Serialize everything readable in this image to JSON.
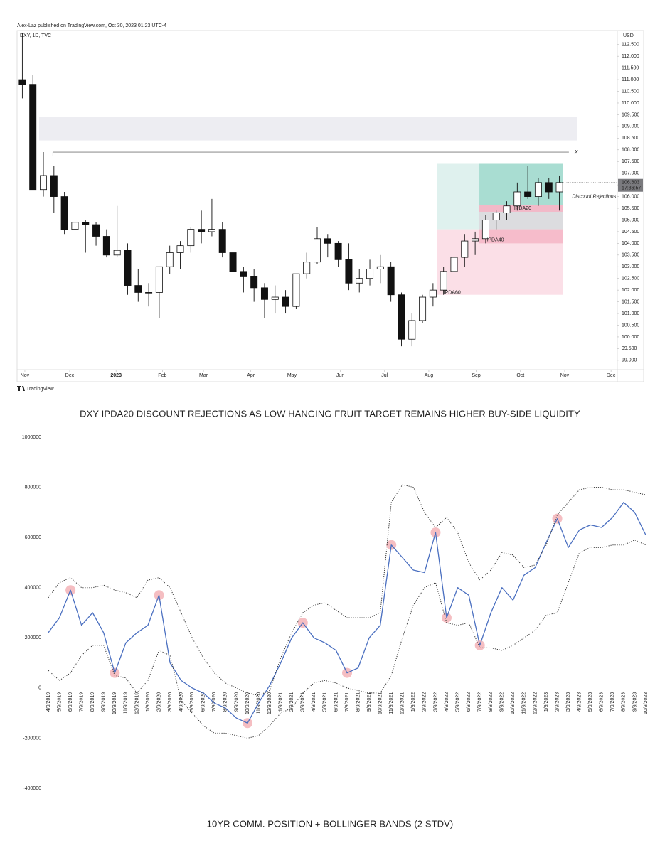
{
  "chart_data": [
    {
      "type": "candlestick",
      "header": "Alex-Laz published on TradingView.com, Oct 30, 2023 01:23 UTC-4",
      "title": "DXY, 1D, TVC",
      "currency": "USD",
      "brand": "TradingView",
      "caption": "DXY IPDA20 DISCOUNT REJECTIONS AS LOW HANGING FRUIT TARGET REMAINS HIGHER BUY-SIDE LIQUIDITY",
      "open": [
        111.0,
        110.8,
        106.3,
        106.9,
        106.0,
        104.6,
        104.9,
        104.8,
        104.3,
        103.5,
        103.7,
        102.2,
        101.9,
        101.9,
        103.0,
        103.6,
        103.9,
        104.6,
        104.5,
        104.6,
        103.6,
        102.8,
        102.6,
        102.1,
        101.6,
        101.7,
        101.3,
        102.7,
        103.2,
        104.2,
        104.0,
        103.3,
        102.3,
        102.5,
        102.9,
        103.0,
        101.8,
        99.9,
        100.7,
        101.7,
        102.0,
        102.8,
        103.4,
        104.1,
        104.2,
        105.0,
        105.3,
        105.6,
        106.2,
        106.0,
        106.6,
        106.2
      ],
      "high": [
        113.0,
        111.2,
        107.9,
        107.3,
        106.2,
        105.6,
        105.0,
        104.9,
        104.6,
        105.6,
        104.0,
        102.9,
        102.3,
        103.0,
        103.9,
        104.1,
        104.7,
        105.4,
        105.9,
        104.9,
        103.9,
        103.0,
        102.9,
        102.3,
        102.2,
        102.0,
        102.7,
        103.6,
        104.7,
        104.4,
        104.1,
        104.0,
        102.9,
        103.3,
        103.5,
        103.2,
        101.9,
        101.0,
        101.8,
        102.3,
        103.0,
        103.6,
        104.4,
        104.5,
        105.2,
        105.4,
        105.8,
        106.6,
        107.3,
        106.8,
        106.8,
        106.9
      ],
      "low": [
        110.2,
        106.3,
        106.0,
        105.3,
        104.4,
        104.1,
        103.6,
        103.9,
        103.4,
        103.4,
        101.8,
        101.5,
        101.3,
        100.8,
        102.7,
        102.9,
        103.6,
        104.0,
        104.3,
        103.4,
        102.6,
        101.9,
        101.5,
        100.8,
        101.0,
        101.0,
        101.2,
        102.5,
        103.1,
        103.4,
        103.0,
        102.0,
        101.9,
        102.2,
        102.3,
        101.5,
        99.6,
        99.6,
        100.6,
        101.3,
        101.8,
        102.6,
        103.0,
        103.5,
        104.0,
        104.6,
        105.0,
        105.4,
        105.9,
        105.6,
        105.9,
        105.4
      ],
      "close": [
        110.8,
        106.3,
        106.9,
        106.0,
        104.6,
        104.9,
        104.8,
        104.3,
        103.5,
        103.7,
        102.2,
        101.9,
        101.9,
        103.0,
        103.6,
        103.9,
        104.6,
        104.5,
        104.6,
        103.6,
        102.8,
        102.6,
        102.1,
        101.6,
        101.7,
        101.3,
        102.7,
        103.2,
        104.2,
        104.0,
        103.3,
        102.3,
        102.5,
        102.9,
        103.0,
        101.8,
        99.9,
        100.7,
        101.7,
        102.0,
        102.8,
        103.4,
        104.1,
        104.2,
        105.0,
        105.3,
        105.6,
        106.2,
        106.0,
        106.6,
        106.2,
        106.6
      ],
      "xlim": [
        -0.5,
        56.5
      ],
      "xticks": [
        {
          "value": 0.24,
          "label": "Nov"
        },
        {
          "value": 4.5,
          "label": "Dec"
        },
        {
          "value": 8.9,
          "label": "2023"
        },
        {
          "value": 13.3,
          "label": "Feb"
        },
        {
          "value": 17.2,
          "label": "Mar"
        },
        {
          "value": 21.7,
          "label": "Apr"
        },
        {
          "value": 25.6,
          "label": "May"
        },
        {
          "value": 30.2,
          "label": "Jun"
        },
        {
          "value": 34.4,
          "label": "Jul"
        },
        {
          "value": 38.6,
          "label": "Aug"
        },
        {
          "value": 43.1,
          "label": "Sep"
        },
        {
          "value": 47.3,
          "label": "Oct"
        },
        {
          "value": 51.5,
          "label": "Nov"
        },
        {
          "value": 55.9,
          "label": "Dec"
        }
      ],
      "ylim": [
        98.6,
        113.1
      ],
      "yticks": [
        {
          "value": 99,
          "label": "99.000"
        },
        {
          "value": 99.5,
          "label": "99.500"
        },
        {
          "value": 100,
          "label": "100.000"
        },
        {
          "value": 100.5,
          "label": "100.500"
        },
        {
          "value": 101,
          "label": "101.000"
        },
        {
          "value": 101.5,
          "label": "101.500"
        },
        {
          "value": 102,
          "label": "102.000"
        },
        {
          "value": 102.5,
          "label": "102.500"
        },
        {
          "value": 103,
          "label": "103.000"
        },
        {
          "value": 103.5,
          "label": "103.500"
        },
        {
          "value": 104,
          "label": "104.000"
        },
        {
          "value": 104.5,
          "label": "104.500"
        },
        {
          "value": 105,
          "label": "105.000"
        },
        {
          "value": 105.5,
          "label": "105.500"
        },
        {
          "value": 106,
          "label": "106.000"
        },
        {
          "value": 106.5,
          "label": "106.500"
        },
        {
          "value": 107,
          "label": "107.000"
        },
        {
          "value": 107.5,
          "label": "107.500"
        },
        {
          "value": 108,
          "label": "108.000"
        },
        {
          "value": 108.5,
          "label": "108.500"
        },
        {
          "value": 109,
          "label": "109.000"
        },
        {
          "value": 109.5,
          "label": "109.500"
        },
        {
          "value": 110,
          "label": "110.000"
        },
        {
          "value": 110.5,
          "label": "110.500"
        },
        {
          "value": 111,
          "label": "111.000"
        },
        {
          "value": 111.5,
          "label": "111.500"
        },
        {
          "value": 112,
          "label": "112.000"
        },
        {
          "value": 112.5,
          "label": "112.500"
        }
      ],
      "last_price": {
        "value": 106.603,
        "label": "106.603"
      },
      "countdown": "17:36:57",
      "zones": [
        {
          "x": [
            1.6,
            52.7
          ],
          "y": [
            108.4,
            109.4
          ],
          "color": "#ededf2"
        },
        {
          "x": [
            39.4,
            43.4
          ],
          "y": [
            104.6,
            107.4
          ],
          "color": "#dff1ee"
        },
        {
          "x": [
            43.4,
            51.3
          ],
          "y": [
            105.65,
            107.4
          ],
          "color": "#a9ddd2"
        },
        {
          "x": [
            39.4,
            51.3
          ],
          "y": [
            101.8,
            104.6
          ],
          "color": "#fbdfe7"
        },
        {
          "x": [
            43.4,
            51.3
          ],
          "y": [
            104.6,
            105.65
          ],
          "color": "#dcdcdf"
        },
        {
          "x": [
            43.4,
            51.3
          ],
          "y": [
            104.0,
            104.6
          ],
          "color": "#f6bccb"
        },
        {
          "x": [
            43.4,
            51.3
          ],
          "y": [
            105.35,
            105.65
          ],
          "color": "#f2b9c8"
        }
      ],
      "level": {
        "value": 107.9,
        "x": [
          2.9,
          51.9
        ],
        "label": "X"
      },
      "annotations": [
        {
          "text": "Discount Rejections",
          "x": 52.2,
          "y": 106.0
        },
        {
          "text": "IPDA20",
          "x": 46.7,
          "y": 105.5
        },
        {
          "text": "IPDA40",
          "x": 44.1,
          "y": 104.15
        },
        {
          "text": "IPDA60",
          "x": 40.0,
          "y": 101.9
        }
      ]
    },
    {
      "type": "line",
      "caption": "10YR COMM. POSITION + BOLLINGER BANDS (2 STDV)",
      "categories": [
        "4/9/2019",
        "5/9/2019",
        "6/9/2019",
        "7/9/2019",
        "8/9/2019",
        "9/9/2019",
        "10/9/2019",
        "11/9/2019",
        "12/9/2019",
        "1/9/2020",
        "2/9/2020",
        "3/9/2020",
        "4/9/2020",
        "5/9/2020",
        "6/9/2020",
        "7/9/2020",
        "8/9/2020",
        "9/9/2020",
        "10/9/2020",
        "11/9/2020",
        "12/9/2020",
        "1/9/2021",
        "2/9/2021",
        "3/9/2021",
        "4/9/2021",
        "5/9/2021",
        "6/9/2021",
        "7/9/2021",
        "8/9/2021",
        "9/9/2021",
        "10/9/2021",
        "11/9/2021",
        "12/9/2021",
        "1/9/2022",
        "2/9/2022",
        "3/9/2022",
        "4/9/2022",
        "5/9/2022",
        "6/9/2022",
        "7/9/2022",
        "8/9/2022",
        "9/9/2022",
        "10/9/2022",
        "11/9/2022",
        "12/9/2022",
        "1/9/2023",
        "2/9/2023",
        "3/9/2023",
        "4/9/2023",
        "5/9/2023",
        "6/9/2023",
        "7/9/2023",
        "8/9/2023",
        "9/9/2023",
        "10/9/2023"
      ],
      "series": [
        {
          "color": "#4a6fc0",
          "style": "solid",
          "values": [
            221000,
            280000,
            390000,
            250000,
            300000,
            220000,
            60000,
            180000,
            220000,
            250000,
            370000,
            100000,
            30000,
            0,
            -20000,
            -60000,
            -80000,
            -120000,
            -140000,
            -60000,
            10000,
            100000,
            200000,
            260000,
            200000,
            180000,
            150000,
            60000,
            80000,
            200000,
            250000,
            570000,
            520000,
            470000,
            460000,
            620000,
            280000,
            400000,
            370000,
            170000,
            300000,
            400000,
            350000,
            450000,
            480000,
            580000,
            675000,
            560000,
            630000,
            650000,
            640000,
            680000,
            740000,
            700000,
            610000
          ]
        },
        {
          "color": "#333333",
          "style": "dotted",
          "values": [
            360000,
            420000,
            440000,
            400000,
            400000,
            410000,
            390000,
            380000,
            360000,
            430000,
            440000,
            400000,
            300000,
            200000,
            120000,
            60000,
            20000,
            0,
            -20000,
            -30000,
            -10000,
            120000,
            220000,
            300000,
            330000,
            340000,
            310000,
            280000,
            280000,
            280000,
            300000,
            740000,
            810000,
            800000,
            700000,
            640000,
            680000,
            620000,
            500000,
            430000,
            470000,
            540000,
            530000,
            480000,
            490000,
            570000,
            690000,
            740000,
            790000,
            800000,
            800000,
            790000,
            790000,
            780000,
            770000
          ]
        },
        {
          "color": "#333333",
          "style": "dotted",
          "values": [
            70000,
            30000,
            60000,
            130000,
            170000,
            170000,
            50000,
            40000,
            -20000,
            30000,
            150000,
            130000,
            -50000,
            -100000,
            -150000,
            -180000,
            -180000,
            -190000,
            -200000,
            -190000,
            -150000,
            -100000,
            -80000,
            -20000,
            20000,
            30000,
            20000,
            0,
            -10000,
            -20000,
            -20000,
            50000,
            200000,
            330000,
            400000,
            420000,
            260000,
            250000,
            260000,
            160000,
            160000,
            150000,
            170000,
            200000,
            230000,
            290000,
            300000,
            420000,
            540000,
            560000,
            560000,
            570000,
            570000,
            590000,
            570000
          ]
        }
      ],
      "highlights": [
        2,
        6,
        10,
        18,
        23,
        27,
        31,
        35,
        36,
        39,
        46
      ],
      "highlight_color": "#f2a8ad",
      "ylim": [
        -400000,
        1000000
      ],
      "yticks": [
        -400000,
        -200000,
        0,
        200000,
        400000,
        600000,
        800000,
        1000000
      ]
    }
  ]
}
